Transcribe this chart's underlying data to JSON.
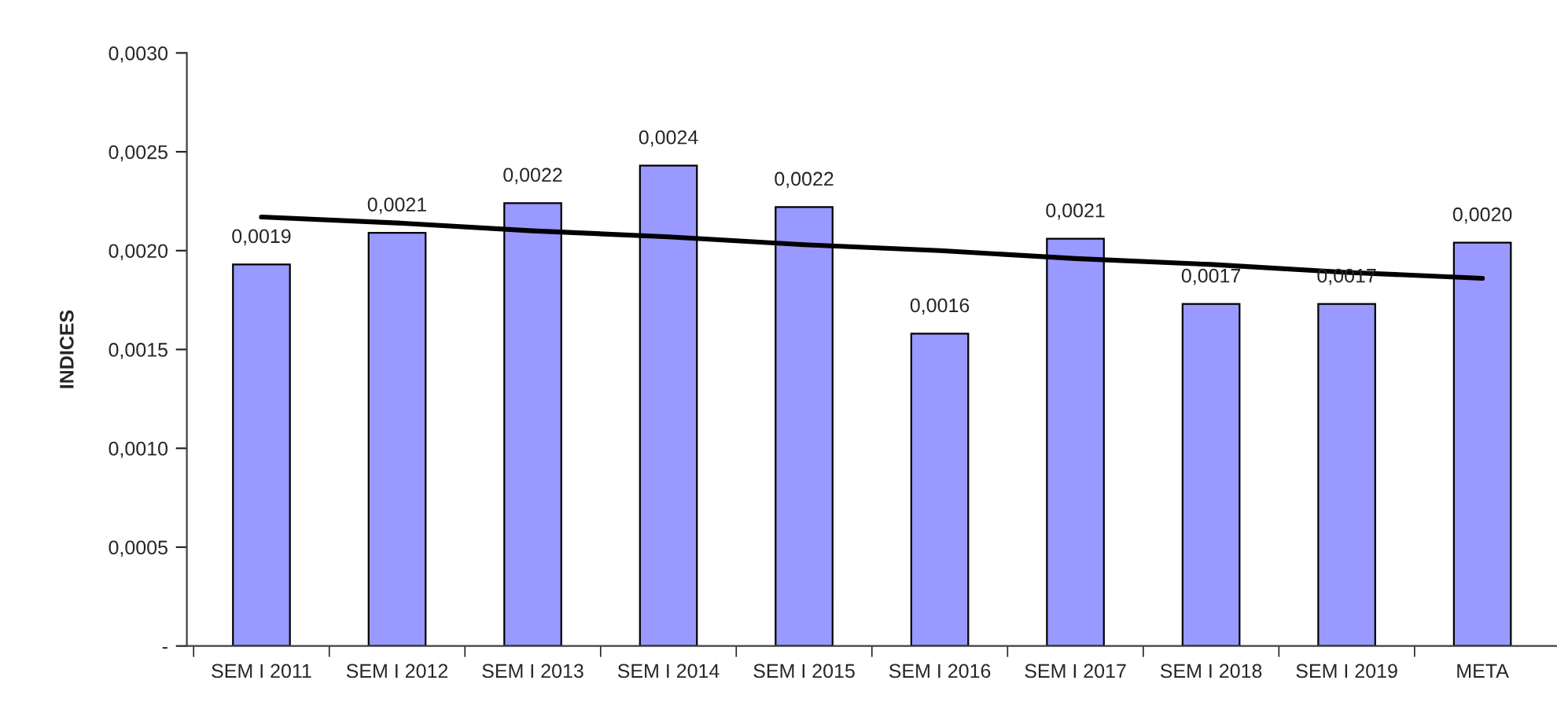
{
  "chart_data": {
    "type": "bar",
    "ylabel": "INDICES",
    "categories": [
      "SEM I 2011",
      "SEM I 2012",
      "SEM I 2013",
      "SEM I 2014",
      "SEM I 2015",
      "SEM I 2016",
      "SEM I 2017",
      "SEM I 2018",
      "SEM I 2019",
      "META"
    ],
    "series": [
      {
        "color": "#9999ff",
        "values": [
          0.00193,
          0.00209,
          0.00224,
          0.00243,
          0.00222,
          0.00158,
          0.00206,
          0.00173,
          0.00173,
          0.00204
        ],
        "value_labels": [
          "0,0019",
          "0,0021",
          "0,0022",
          "0,0024",
          "0,0022",
          "0,0016",
          "0,0021",
          "0,0017",
          "0,0017",
          "0,0020"
        ]
      },
      {
        "type": "line",
        "color": "#000000",
        "values": [
          0.00217,
          0.00214,
          0.0021,
          0.00207,
          0.00203,
          0.002,
          0.00196,
          0.00193,
          0.00189,
          0.00186
        ]
      }
    ],
    "ylim": [
      0,
      0.003
    ],
    "yticks": [
      {
        "value": 0,
        "label": "-"
      },
      {
        "value": 0.0005,
        "label": "0,0005"
      },
      {
        "value": 0.001,
        "label": "0,0010"
      },
      {
        "value": 0.0015,
        "label": "0,0015"
      },
      {
        "value": 0.002,
        "label": "0,0020"
      },
      {
        "value": 0.0025,
        "label": "0,0025"
      },
      {
        "value": 0.003,
        "label": "0,0030"
      }
    ],
    "grid": false
  }
}
